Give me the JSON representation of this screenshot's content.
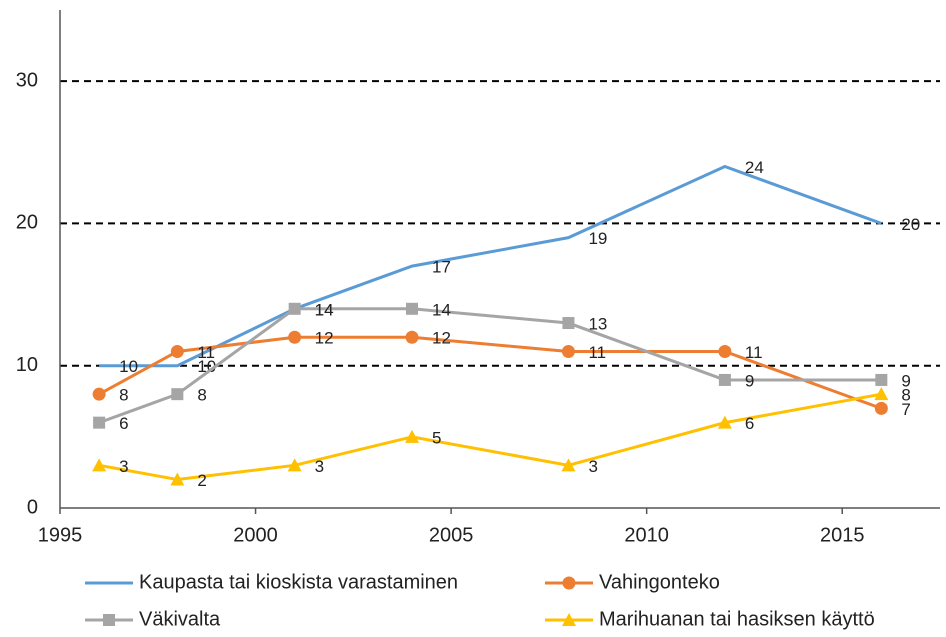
{
  "chart_data": {
    "type": "line",
    "x": [
      1996,
      1998,
      2001,
      2004,
      2008,
      2012,
      2016
    ],
    "series": [
      {
        "name": "Kaupasta tai kioskista varastaminen",
        "color": "#5b9bd5",
        "marker": "none",
        "values": [
          10,
          10,
          14,
          17,
          19,
          24,
          20
        ]
      },
      {
        "name": "Vahingonteko",
        "color": "#ed7d31",
        "marker": "circle",
        "values": [
          8,
          11,
          12,
          12,
          11,
          11,
          7
        ]
      },
      {
        "name": "Väkivalta",
        "color": "#a5a5a5",
        "marker": "square",
        "values": [
          6,
          8,
          14,
          14,
          13,
          9,
          9
        ]
      },
      {
        "name": "Marihuanan tai hasiksen käyttö",
        "color": "#ffc000",
        "marker": "triangle",
        "values": [
          3,
          2,
          3,
          5,
          3,
          6,
          8
        ]
      }
    ],
    "xlim": [
      1995,
      2017.5
    ],
    "xticks": [
      1995,
      2000,
      2005,
      2010,
      2015
    ],
    "ylim": [
      0,
      35
    ],
    "yticks": [
      0,
      10,
      20,
      30
    ],
    "grid": true,
    "legend": "bottom"
  }
}
